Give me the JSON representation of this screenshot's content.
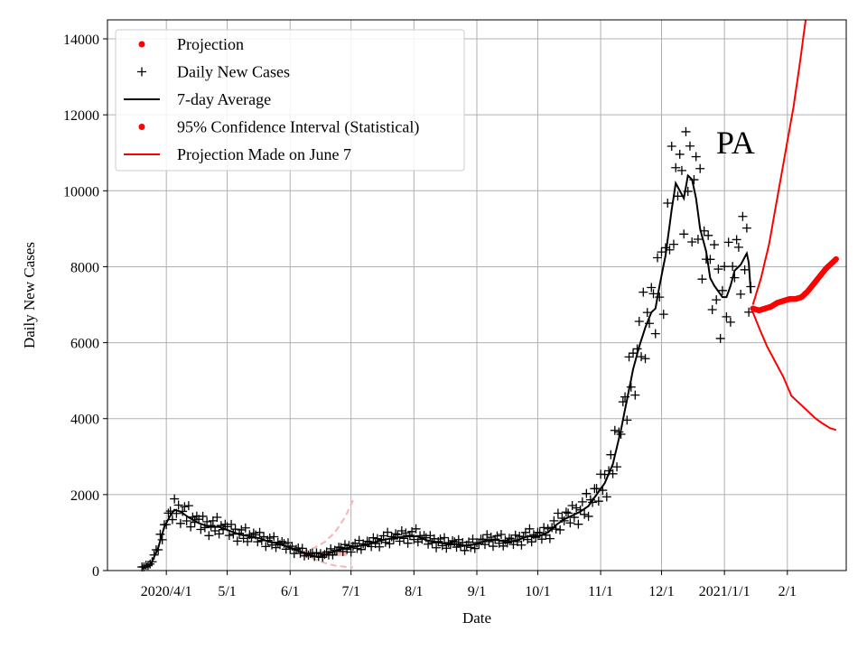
{
  "chart_data": {
    "type": "line",
    "title": "",
    "annotation": "PA",
    "xlabel": "Date",
    "ylabel": "Daily New Cases",
    "ylim": [
      0,
      14500
    ],
    "xlim_day_index": [
      -7,
      357
    ],
    "x_unit": "days since 2020-03-10",
    "y_ticks": [
      0,
      2000,
      4000,
      6000,
      8000,
      10000,
      12000,
      14000
    ],
    "x_ticks": [
      {
        "label": "2020/4/1",
        "day": 22
      },
      {
        "label": "5/1",
        "day": 52
      },
      {
        "label": "6/1",
        "day": 83
      },
      {
        "label": "7/1",
        "day": 113
      },
      {
        "label": "8/1",
        "day": 144
      },
      {
        "label": "9/1",
        "day": 175
      },
      {
        "label": "10/1",
        "day": 205
      },
      {
        "label": "11/1",
        "day": 236
      },
      {
        "label": "12/1",
        "day": 266
      },
      {
        "label": "2021/1/1",
        "day": 297
      },
      {
        "label": "2/1",
        "day": 328
      }
    ],
    "grid": true,
    "legend_position": "top-left",
    "legend": [
      {
        "label": "Projection",
        "kind": "dot",
        "color": "#ff0000"
      },
      {
        "label": "Daily New Cases",
        "kind": "plus",
        "color": "#000000"
      },
      {
        "label": "7-day Average",
        "kind": "line",
        "color": "#000000"
      },
      {
        "label": "95% Confidence Interval (Statistical)",
        "kind": "dot",
        "color": "#ff0000"
      },
      {
        "label": "Projection Made on June 7",
        "kind": "line",
        "color": "#ff0000"
      }
    ],
    "colors": {
      "data": "#000000",
      "projection": "#ff0000",
      "early_projection": "#f4b6b6",
      "grid": "#b0b0b0"
    },
    "avg_keypoints": [
      [
        10,
        50
      ],
      [
        14,
        120
      ],
      [
        18,
        600
      ],
      [
        21,
        1150
      ],
      [
        24,
        1450
      ],
      [
        26,
        1600
      ],
      [
        29,
        1550
      ],
      [
        33,
        1400
      ],
      [
        38,
        1250
      ],
      [
        43,
        1150
      ],
      [
        48,
        1150
      ],
      [
        53,
        1050
      ],
      [
        58,
        950
      ],
      [
        63,
        900
      ],
      [
        68,
        850
      ],
      [
        73,
        750
      ],
      [
        78,
        700
      ],
      [
        83,
        600
      ],
      [
        88,
        500
      ],
      [
        93,
        400
      ],
      [
        97,
        350
      ],
      [
        102,
        450
      ],
      [
        107,
        550
      ],
      [
        112,
        600
      ],
      [
        117,
        650
      ],
      [
        122,
        700
      ],
      [
        127,
        780
      ],
      [
        133,
        850
      ],
      [
        140,
        900
      ],
      [
        146,
        900
      ],
      [
        150,
        800
      ],
      [
        155,
        750
      ],
      [
        160,
        700
      ],
      [
        165,
        700
      ],
      [
        170,
        650
      ],
      [
        175,
        700
      ],
      [
        180,
        800
      ],
      [
        185,
        800
      ],
      [
        190,
        750
      ],
      [
        195,
        800
      ],
      [
        200,
        900
      ],
      [
        205,
        900
      ],
      [
        210,
        1000
      ],
      [
        214,
        1200
      ],
      [
        218,
        1350
      ],
      [
        222,
        1450
      ],
      [
        226,
        1550
      ],
      [
        230,
        1700
      ],
      [
        234,
        2000
      ],
      [
        238,
        2300
      ],
      [
        242,
        2800
      ],
      [
        246,
        3700
      ],
      [
        249,
        4500
      ],
      [
        252,
        5300
      ],
      [
        255,
        5900
      ],
      [
        258,
        6400
      ],
      [
        261,
        6800
      ],
      [
        263,
        6900
      ],
      [
        265,
        7500
      ],
      [
        268,
        8300
      ],
      [
        271,
        9500
      ],
      [
        273,
        10200
      ],
      [
        275,
        10000
      ],
      [
        277,
        9800
      ],
      [
        279,
        10400
      ],
      [
        281,
        10300
      ],
      [
        283,
        9800
      ],
      [
        285,
        9000
      ],
      [
        288,
        8400
      ],
      [
        290,
        7700
      ],
      [
        292,
        7500
      ],
      [
        294,
        7350
      ],
      [
        296,
        7200
      ],
      [
        298,
        7200
      ],
      [
        300,
        7500
      ],
      [
        302,
        7900
      ],
      [
        305,
        8050
      ],
      [
        308,
        8350
      ],
      [
        309,
        8100
      ],
      [
        310,
        7300
      ]
    ],
    "daily_noise_pattern": [
      0.08,
      -0.12,
      0.18,
      -0.05,
      0.1,
      -0.2,
      0.03,
      0.14,
      -0.09,
      0.22,
      -0.16,
      0.05,
      -0.03,
      0.12
    ],
    "projection_points": [
      [
        311,
        6900
      ],
      [
        314,
        6850
      ],
      [
        317,
        6900
      ],
      [
        320,
        6950
      ],
      [
        323,
        7050
      ],
      [
        326,
        7100
      ],
      [
        329,
        7150
      ],
      [
        332,
        7150
      ],
      [
        335,
        7200
      ],
      [
        338,
        7350
      ],
      [
        341,
        7550
      ],
      [
        344,
        7750
      ],
      [
        347,
        7950
      ],
      [
        350,
        8100
      ],
      [
        352,
        8200
      ]
    ],
    "upper_ci": [
      [
        311,
        7000
      ],
      [
        315,
        7700
      ],
      [
        319,
        8600
      ],
      [
        323,
        9800
      ],
      [
        327,
        11000
      ],
      [
        331,
        12200
      ],
      [
        334,
        13300
      ],
      [
        337,
        14500
      ]
    ],
    "lower_ci": [
      [
        311,
        6800
      ],
      [
        314,
        6400
      ],
      [
        318,
        5900
      ],
      [
        322,
        5500
      ],
      [
        326,
        5100
      ],
      [
        330,
        4600
      ],
      [
        334,
        4400
      ],
      [
        338,
        4200
      ],
      [
        342,
        4000
      ],
      [
        346,
        3850
      ],
      [
        349,
        3750
      ],
      [
        352,
        3700
      ]
    ],
    "early_projection": {
      "center": [
        [
          89,
          450
        ],
        [
          92,
          420
        ],
        [
          95,
          420
        ],
        [
          98,
          430
        ],
        [
          101,
          440
        ],
        [
          104,
          450
        ],
        [
          107,
          450
        ],
        [
          110,
          450
        ]
      ],
      "upper": [
        [
          89,
          480
        ],
        [
          95,
          600
        ],
        [
          100,
          750
        ],
        [
          105,
          1000
        ],
        [
          110,
          1400
        ],
        [
          114,
          1850
        ]
      ],
      "lower": [
        [
          89,
          420
        ],
        [
          95,
          300
        ],
        [
          100,
          200
        ],
        [
          105,
          130
        ],
        [
          110,
          100
        ],
        [
          114,
          80
        ]
      ]
    }
  }
}
